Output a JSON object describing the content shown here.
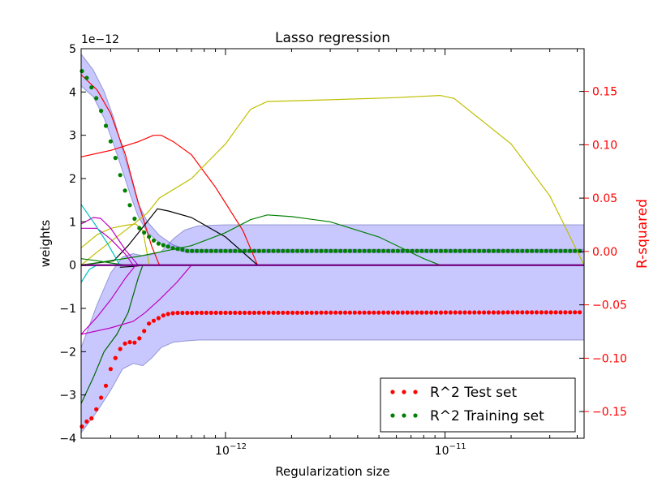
{
  "chart_data": {
    "type": "line",
    "title": "Lasso regression",
    "xlabel": "Regularization size",
    "ylabel": "weights",
    "ylabel_right": "R-squared",
    "x_scale": "log",
    "xlim": [
      2.2e-13,
      4.3e-11
    ],
    "x_ticks": [
      {
        "value": 1e-12,
        "base": "10",
        "exp": "−12"
      },
      {
        "value": 1e-11,
        "base": "10",
        "exp": "−11"
      }
    ],
    "ylim": [
      -4,
      5
    ],
    "y_ticks": [
      "−4",
      "−3",
      "−2",
      "−1",
      "0",
      "1",
      "2",
      "3",
      "4",
      "5"
    ],
    "y_tick_values": [
      -4,
      -3,
      -2,
      -1,
      0,
      1,
      2,
      3,
      4,
      5
    ],
    "y_offset_label": "1e−12",
    "ylim_right": [
      -0.175,
      0.19
    ],
    "y_ticks_right": [
      "−0.15",
      "−0.10",
      "−0.05",
      "0.00",
      "0.05",
      "0.10",
      "0.15"
    ],
    "y_tick_values_right": [
      -0.15,
      -0.1,
      -0.05,
      0.0,
      0.05,
      0.1,
      0.15
    ],
    "right_axis_color": "#ff0000",
    "grid": false,
    "legend_position": "lower-right",
    "legend": [
      {
        "label": "R^2 Test set",
        "color": "#ff0000"
      },
      {
        "label": "R^2 Training set",
        "color": "#008000"
      }
    ],
    "weight_paths": [
      {
        "color": "#ff0000",
        "points": [
          [
            2.2e-13,
            2.5
          ],
          [
            3e-13,
            2.65
          ],
          [
            4e-13,
            2.85
          ],
          [
            4.7e-13,
            3.0
          ],
          [
            5.1e-13,
            3.0
          ],
          [
            5.8e-13,
            2.85
          ],
          [
            7e-13,
            2.55
          ],
          [
            9e-13,
            1.8
          ],
          [
            1.2e-12,
            0.8
          ],
          [
            1.4e-12,
            0.0
          ]
        ]
      },
      {
        "color": "#ff0000",
        "points": [
          [
            2.2e-13,
            4.4
          ],
          [
            2.6e-13,
            4.05
          ],
          [
            3e-13,
            3.5
          ],
          [
            3.5e-13,
            2.55
          ],
          [
            4e-13,
            1.45
          ],
          [
            4.6e-13,
            0.45
          ],
          [
            5e-13,
            0.0
          ]
        ]
      },
      {
        "color": "#bfbf00",
        "points": [
          [
            2.2e-13,
            0.0
          ],
          [
            2.6e-13,
            0.3
          ],
          [
            3.1e-13,
            0.6
          ],
          [
            3.6e-13,
            0.85
          ],
          [
            4.4e-13,
            1.2
          ],
          [
            5e-13,
            1.55
          ],
          [
            7e-13,
            2.0
          ],
          [
            1e-12,
            2.8
          ],
          [
            1.3e-12,
            3.6
          ],
          [
            1.55e-12,
            3.78
          ],
          [
            3e-12,
            3.82
          ],
          [
            6e-12,
            3.87
          ],
          [
            9.5e-12,
            3.92
          ],
          [
            1.1e-11,
            3.85
          ],
          [
            2e-11,
            2.8
          ],
          [
            3e-11,
            1.6
          ],
          [
            4.3e-11,
            0.0
          ]
        ]
      },
      {
        "color": "#bfbf00",
        "points": [
          [
            2.2e-13,
            0.4
          ],
          [
            2.6e-13,
            0.7
          ],
          [
            3e-13,
            0.85
          ],
          [
            3.5e-13,
            0.92
          ],
          [
            3.9e-13,
            0.95
          ],
          [
            4.2e-13,
            0.8
          ],
          [
            4.5e-13,
            0.0
          ]
        ]
      },
      {
        "color": "#000000",
        "points": [
          [
            2.2e-13,
            0.0
          ],
          [
            3.1e-13,
            0.1
          ],
          [
            3.6e-13,
            0.45
          ],
          [
            4.4e-13,
            1.0
          ],
          [
            4.9e-13,
            1.3
          ],
          [
            5.5e-13,
            1.25
          ],
          [
            7e-13,
            1.1
          ],
          [
            1e-12,
            0.65
          ],
          [
            1.4e-12,
            0.0
          ]
        ]
      },
      {
        "color": "#000000",
        "points": [
          [
            3.3e-13,
            -0.05
          ],
          [
            3.8e-13,
            -0.03
          ],
          [
            4.3e-13,
            0.0
          ]
        ]
      },
      {
        "color": "#008000",
        "points": [
          [
            2.2e-13,
            0.0
          ],
          [
            4e-13,
            0.2
          ],
          [
            5e-13,
            0.3
          ],
          [
            7e-13,
            0.45
          ],
          [
            1e-12,
            0.75
          ],
          [
            1.3e-12,
            1.05
          ],
          [
            1.55e-12,
            1.16
          ],
          [
            2e-12,
            1.12
          ],
          [
            3e-12,
            1.0
          ],
          [
            5e-12,
            0.65
          ],
          [
            8e-12,
            0.15
          ],
          [
            9.5e-12,
            0.0
          ]
        ]
      },
      {
        "color": "#008000",
        "points": [
          [
            2.2e-13,
            0.15
          ],
          [
            2.6e-13,
            0.1
          ],
          [
            3e-13,
            0.05
          ],
          [
            3.5e-13,
            0.0
          ]
        ]
      },
      {
        "color": "#006400",
        "points": [
          [
            2.2e-13,
            -3.2
          ],
          [
            2.5e-13,
            -2.6
          ],
          [
            2.8e-13,
            -2.0
          ],
          [
            3.2e-13,
            -1.6
          ],
          [
            3.6e-13,
            -1.1
          ],
          [
            4e-13,
            -0.3
          ],
          [
            4.2e-13,
            0.0
          ]
        ]
      },
      {
        "color": "#bf00bf",
        "points": [
          [
            2.2e-13,
            0.95
          ],
          [
            2.5e-13,
            1.1
          ],
          [
            2.7e-13,
            1.08
          ],
          [
            3e-13,
            0.85
          ],
          [
            3.5e-13,
            0.35
          ],
          [
            4e-13,
            0.0
          ]
        ]
      },
      {
        "color": "#bf00bf",
        "points": [
          [
            2.2e-13,
            0.85
          ],
          [
            2.6e-13,
            0.85
          ],
          [
            3e-13,
            0.6
          ],
          [
            3.5e-13,
            0.25
          ],
          [
            3.8e-13,
            0.0
          ]
        ]
      },
      {
        "color": "#bf00bf",
        "points": [
          [
            2.2e-13,
            -1.6
          ],
          [
            2.6e-13,
            -1.2
          ],
          [
            3e-13,
            -0.8
          ],
          [
            3.5e-13,
            -0.3
          ],
          [
            3.9e-13,
            0.0
          ]
        ]
      },
      {
        "color": "#bf00bf",
        "points": [
          [
            2.2e-13,
            -1.6
          ],
          [
            3e-13,
            -1.45
          ],
          [
            3.8e-13,
            -1.3
          ],
          [
            4.3e-13,
            -1.1
          ],
          [
            5e-13,
            -0.8
          ],
          [
            6e-13,
            -0.4
          ],
          [
            7e-13,
            0.0
          ]
        ]
      },
      {
        "color": "#00bfbf",
        "points": [
          [
            2.2e-13,
            1.4
          ],
          [
            2.5e-13,
            1.0
          ],
          [
            2.9e-13,
            0.5
          ],
          [
            3.3e-13,
            0.0
          ]
        ]
      },
      {
        "color": "#00bfbf",
        "points": [
          [
            2.2e-13,
            -0.4
          ],
          [
            2.4e-13,
            -0.1
          ],
          [
            2.6e-13,
            0.0
          ]
        ]
      },
      {
        "color": "#000080",
        "points": [
          [
            2.2e-13,
            0.0
          ],
          [
            4.3e-11,
            0.0
          ]
        ]
      },
      {
        "color": "#800080",
        "points": [
          [
            2.2e-13,
            0.0
          ],
          [
            4.3e-11,
            0.0
          ]
        ]
      }
    ],
    "test_set": {
      "color": "#ff0000",
      "band": {
        "x": [
          2.2e-13,
          2.6e-13,
          3e-13,
          3.4e-13,
          3.8e-13,
          4.2e-13,
          4.6e-13,
          5.1e-13,
          5.8e-13,
          6.5e-13,
          7.5e-13,
          1e-12,
          4.3e-11
        ],
        "upper": [
          -0.09,
          -0.05,
          -0.02,
          -0.005,
          -0.002,
          -0.004,
          -0.003,
          0.0,
          0.012,
          0.02,
          0.024,
          0.025,
          0.025
        ],
        "lower": [
          -0.17,
          -0.15,
          -0.13,
          -0.11,
          -0.105,
          -0.107,
          -0.1,
          -0.09,
          -0.085,
          -0.084,
          -0.083,
          -0.083,
          -0.083
        ]
      },
      "points": [
        [
          2.2e-13,
          -0.165
        ],
        [
          2.3e-13,
          -0.16
        ],
        [
          2.4e-13,
          -0.158
        ],
        [
          2.5e-13,
          -0.155
        ],
        [
          2.6e-13,
          -0.146
        ],
        [
          2.7e-13,
          -0.138
        ],
        [
          2.8e-13,
          -0.13
        ],
        [
          2.9e-13,
          -0.122
        ],
        [
          3e-13,
          -0.11
        ],
        [
          3.1e-13,
          -0.103
        ],
        [
          3.2e-13,
          -0.097
        ],
        [
          3.3e-13,
          -0.092
        ],
        [
          3.4e-13,
          -0.088
        ],
        [
          3.5e-13,
          -0.086
        ],
        [
          3.6e-13,
          -0.085
        ],
        [
          3.7e-13,
          -0.085
        ],
        [
          3.8e-13,
          -0.086
        ],
        [
          3.9e-13,
          -0.085
        ],
        [
          4e-13,
          -0.083
        ],
        [
          4.1e-13,
          -0.08
        ],
        [
          4.2e-13,
          -0.077
        ],
        [
          4.3e-13,
          -0.073
        ],
        [
          4.4e-13,
          -0.07
        ],
        [
          4.5e-13,
          -0.067
        ],
        [
          4.7e-13,
          -0.065
        ],
        [
          4.9e-13,
          -0.063
        ],
        [
          5.2e-13,
          -0.06
        ],
        [
          5.6e-13,
          -0.058
        ],
        [
          6e-13,
          -0.0575
        ],
        [
          4.3e-11,
          -0.057
        ]
      ],
      "fill_note": "flat beyond 6.0e-13 at -0.057"
    },
    "training_set": {
      "color": "#008000",
      "band": {
        "x": [
          2.2e-13,
          2.5e-13,
          2.8e-13,
          3.1e-13,
          3.4e-13,
          3.7e-13,
          4e-13,
          4.4e-13,
          5e-13,
          5.8e-13,
          6.7e-13,
          4.3e-11
        ],
        "upper": [
          0.185,
          0.17,
          0.15,
          0.125,
          0.095,
          0.07,
          0.045,
          0.028,
          0.015,
          0.006,
          0.002,
          0.002
        ],
        "lower": [
          0.155,
          0.145,
          0.125,
          0.1,
          0.075,
          0.052,
          0.033,
          0.018,
          0.008,
          0.002,
          -0.001,
          -0.001
        ]
      },
      "points": [
        [
          2.2e-13,
          0.17
        ],
        [
          2.3e-13,
          0.165
        ],
        [
          2.4e-13,
          0.158
        ],
        [
          2.5e-13,
          0.15
        ],
        [
          2.6e-13,
          0.142
        ],
        [
          2.7e-13,
          0.133
        ],
        [
          2.8e-13,
          0.123
        ],
        [
          2.9e-13,
          0.113
        ],
        [
          3e-13,
          0.103
        ],
        [
          3.1e-13,
          0.093
        ],
        [
          3.2e-13,
          0.083
        ],
        [
          3.3e-13,
          0.073
        ],
        [
          3.4e-13,
          0.064
        ],
        [
          3.5e-13,
          0.056
        ],
        [
          3.6e-13,
          0.048
        ],
        [
          3.7e-13,
          0.041
        ],
        [
          3.8e-13,
          0.034
        ],
        [
          3.9e-13,
          0.028
        ],
        [
          4e-13,
          0.023
        ],
        [
          4.2e-13,
          0.019
        ],
        [
          4.4e-13,
          0.015
        ],
        [
          4.6e-13,
          0.012
        ],
        [
          4.8e-13,
          0.009
        ],
        [
          5e-13,
          0.007
        ],
        [
          5.4e-13,
          0.005
        ],
        [
          5.8e-13,
          0.003
        ],
        [
          6.3e-13,
          0.002
        ],
        [
          6.7e-13,
          0.0005
        ],
        [
          4.3e-11,
          0.0005
        ]
      ]
    }
  }
}
